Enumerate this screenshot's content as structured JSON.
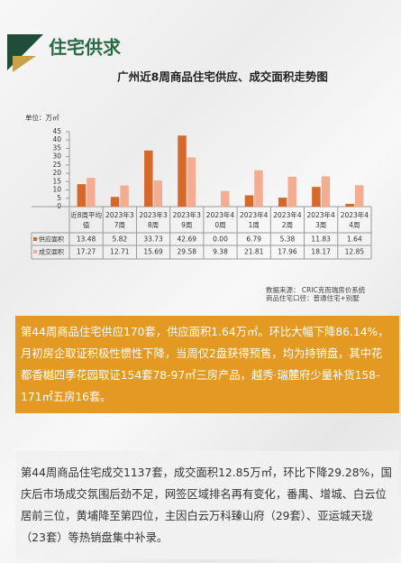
{
  "header": {
    "title": "住宅供求"
  },
  "chart_data": {
    "type": "bar",
    "title": "广州近8周商品住宅供应、成交面积走势图",
    "unit_label": "单位：万㎡",
    "categories": [
      "近8周平均值",
      "2023年37周",
      "2023年38周",
      "2023年39周",
      "2023年40周",
      "2023年41周",
      "2023年42周",
      "2023年43周",
      "2023年44周"
    ],
    "series": [
      {
        "name": "供应面积",
        "color": "#d4692b",
        "values": [
          13.48,
          5.82,
          33.73,
          42.69,
          0,
          6.79,
          5.38,
          11.83,
          1.64
        ],
        "value_labels": [
          "13.48",
          "5.82",
          "33.73",
          "42.69",
          "0.00",
          "6.79",
          "5.38",
          "11.83",
          "1.64"
        ]
      },
      {
        "name": "成交面积",
        "color": "#f3ad92",
        "values": [
          17.27,
          12.71,
          15.69,
          29.58,
          9.38,
          21.81,
          17.96,
          18.17,
          12.85
        ]
      }
    ],
    "ylim": [
      0,
      45
    ],
    "yticks": [
      0,
      5,
      10,
      15,
      20,
      25,
      30,
      35,
      40,
      45
    ]
  },
  "source": [
    "数据来源：  CRIC克而瑞房价系统",
    "商品住宅口径：普通住宅+别墅"
  ],
  "paragraphs": [
    "第44周商品住宅供应170套，供应面积1.64万㎡。环比大幅下降86.14%，月初房企取证积极性惯性下降，当周仅2盘获得预售，均为持销盘，其中花都香樾四季花园取证154套78-97㎡三房产品，越秀·瑞麓府少量补货158-171㎡五房16套。",
    "第44周商品住宅成交1137套，成交面积12.85万㎡，环比下降29.28%，国庆后市场成交氛围后劲不足，网签区域排名再有变化，番禺、增城、白云位居前三位，黄埔降至第四位，主因白云万科臻山府（29套）、亚运城天珑（23套）等热销盘集中补录。"
  ]
}
